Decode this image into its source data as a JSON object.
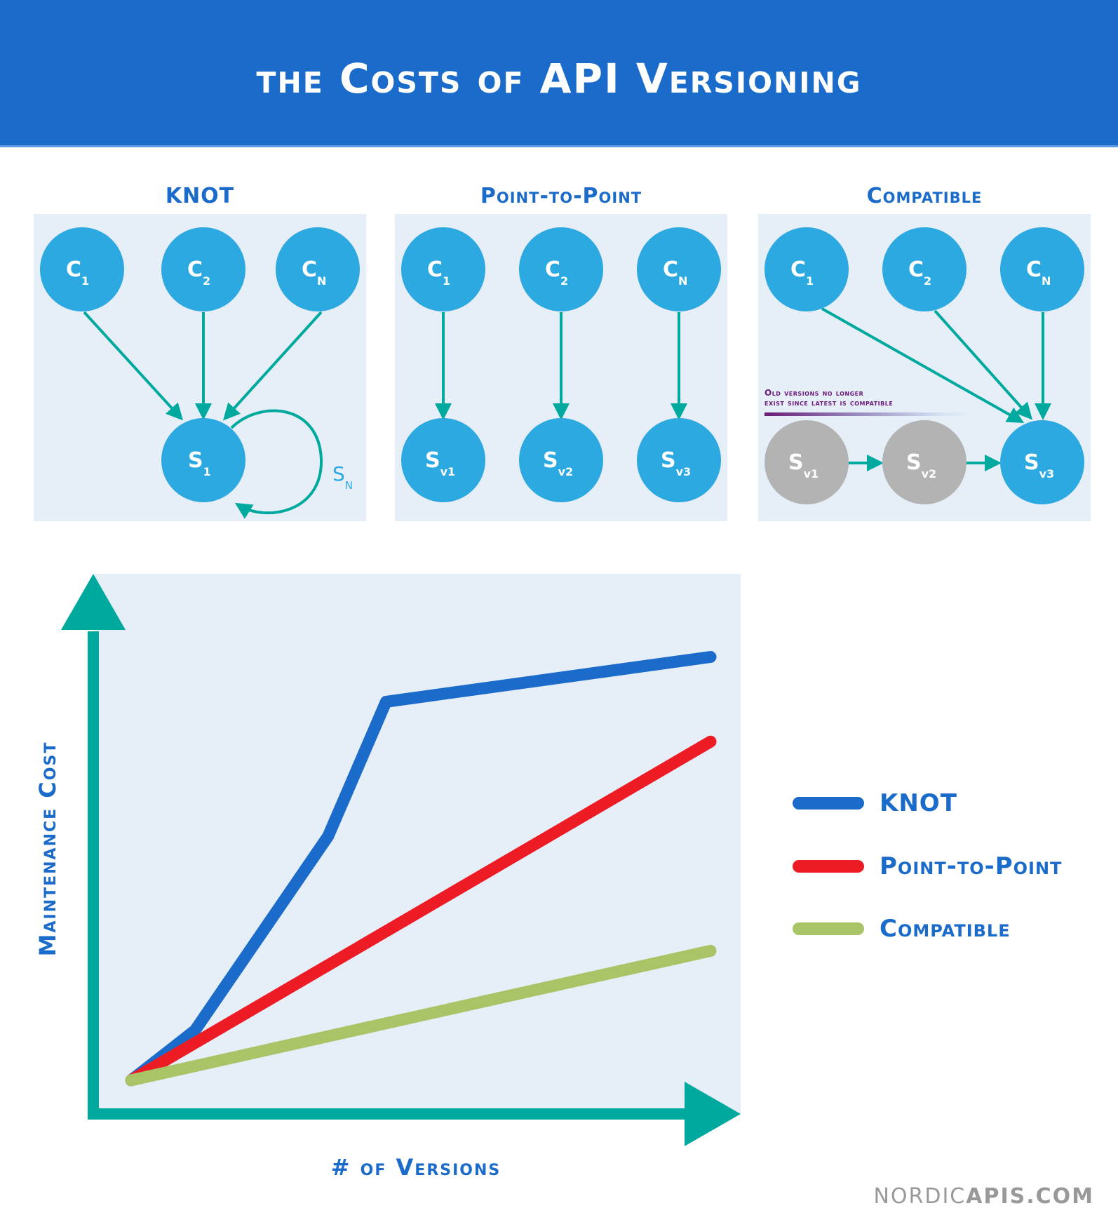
{
  "header": {
    "title": "the Costs of API Versioning"
  },
  "colors": {
    "header_bg": "#1B6BCB",
    "panel_bg": "#E6EEF8",
    "node_active": "#2BA9E0",
    "node_deprecated": "#B3B3B3",
    "arrow": "#00A99D",
    "note_text": "#6A1B7A",
    "knot": "#1B6BCB",
    "point_to_point": "#ED1C24",
    "compatible": "#A8C466"
  },
  "diagrams": [
    {
      "title": "KNOT",
      "clients": [
        "C1",
        "C2",
        "CN"
      ],
      "servers": [
        "S1"
      ],
      "self_loop_label": "SN",
      "edges": [
        "C1->S1",
        "C2->S1",
        "CN->S1",
        "S1->S1 (SN)"
      ]
    },
    {
      "title": "Point-to-Point",
      "clients": [
        "C1",
        "C2",
        "CN"
      ],
      "servers": [
        "Sv1",
        "Sv2",
        "Sv3"
      ],
      "edges": [
        "C1->Sv1",
        "C2->Sv2",
        "CN->Sv3"
      ]
    },
    {
      "title": "Compatible",
      "clients": [
        "C1",
        "C2",
        "CN"
      ],
      "servers": [
        "Sv1",
        "Sv2",
        "Sv3"
      ],
      "deprecated_servers": [
        "Sv1",
        "Sv2"
      ],
      "note_line1": "Old versions no longer",
      "note_line2": "exist since latest is compatible",
      "edges": [
        "C1->Sv3",
        "C2->Sv3",
        "CN->Sv3",
        "Sv1->Sv2",
        "Sv2->Sv3"
      ]
    }
  ],
  "chart_data": {
    "type": "line",
    "title": "",
    "xlabel": "# of Versions",
    "ylabel": "Maintenance Cost",
    "grid": false,
    "ticks": "none",
    "legend_position": "right",
    "x": [
      0,
      1,
      2,
      3,
      4,
      5,
      6,
      7,
      8,
      9,
      10
    ],
    "series": [
      {
        "name": "KNOT",
        "color": "#1B6BCB",
        "points": [
          [
            0,
            0
          ],
          [
            1.1,
            10
          ],
          [
            3.4,
            49
          ],
          [
            4.4,
            76
          ],
          [
            10,
            85
          ]
        ]
      },
      {
        "name": "Point-to-Point",
        "color": "#ED1C24",
        "points": [
          [
            0,
            0
          ],
          [
            10,
            68
          ]
        ]
      },
      {
        "name": "Compatible",
        "color": "#A8C466",
        "points": [
          [
            0,
            0
          ],
          [
            10,
            26
          ]
        ]
      }
    ],
    "xlim": [
      0,
      10
    ],
    "ylim": [
      0,
      100
    ]
  },
  "legend": {
    "items": [
      {
        "label": "KNOT",
        "color": "#1B6BCB"
      },
      {
        "label": "Point-to-Point",
        "color": "#ED1C24"
      },
      {
        "label": "Compatible",
        "color": "#A8C466"
      }
    ]
  },
  "footer": {
    "brand_light": "NORDIC",
    "brand_bold": "APIS",
    "brand_suffix": ".COM"
  }
}
